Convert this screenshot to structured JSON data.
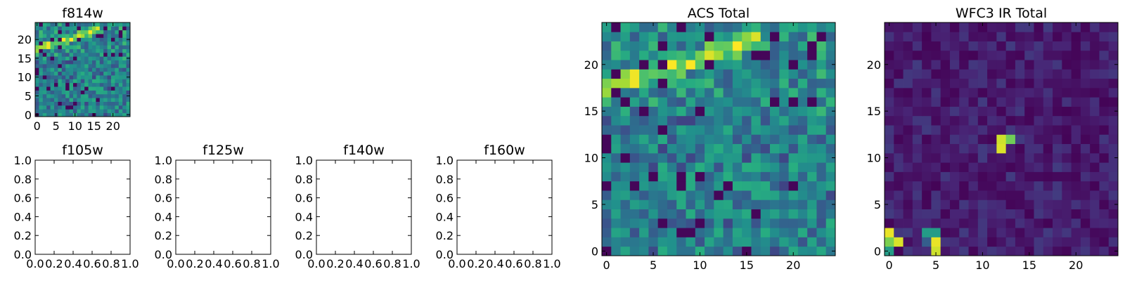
{
  "chart_data": [
    {
      "type": "heatmap",
      "title": "f814w",
      "xlim": [
        -0.5,
        24.5
      ],
      "ylim": [
        -0.5,
        24.5
      ],
      "xticks": [
        0,
        5,
        10,
        15,
        20
      ],
      "yticks": [
        0,
        5,
        10,
        15,
        20
      ],
      "colormap": "viridis",
      "grid": false,
      "generator": "acs",
      "values": []
    },
    {
      "type": "empty",
      "title": "f105w",
      "xlim": [
        0,
        1
      ],
      "ylim": [
        0,
        1
      ],
      "xticks": [
        "0.0",
        "0.2",
        "0.4",
        "0.6",
        "0.8",
        "1.0"
      ],
      "yticks": [
        "0.0",
        "0.2",
        "0.4",
        "0.6",
        "0.8",
        "1.0"
      ]
    },
    {
      "type": "empty",
      "title": "f125w",
      "xlim": [
        0,
        1
      ],
      "ylim": [
        0,
        1
      ],
      "xticks": [
        "0.0",
        "0.2",
        "0.4",
        "0.6",
        "0.8",
        "1.0"
      ],
      "yticks": [
        "0.0",
        "0.2",
        "0.4",
        "0.6",
        "0.8",
        "1.0"
      ]
    },
    {
      "type": "empty",
      "title": "f140w",
      "xlim": [
        0,
        1
      ],
      "ylim": [
        0,
        1
      ],
      "xticks": [
        "0.0",
        "0.2",
        "0.4",
        "0.6",
        "0.8",
        "1.0"
      ],
      "yticks": [
        "0.0",
        "0.2",
        "0.4",
        "0.6",
        "0.8",
        "1.0"
      ]
    },
    {
      "type": "empty",
      "title": "f160w",
      "xlim": [
        0,
        1
      ],
      "ylim": [
        0,
        1
      ],
      "xticks": [
        "0.0",
        "0.2",
        "0.4",
        "0.6",
        "0.8",
        "1.0"
      ],
      "yticks": [
        "0.0",
        "0.2",
        "0.4",
        "0.6",
        "0.8",
        "1.0"
      ]
    },
    {
      "type": "heatmap",
      "title": "ACS Total",
      "xlim": [
        -0.5,
        24.5
      ],
      "ylim": [
        -0.5,
        24.5
      ],
      "xticks": [
        0,
        5,
        10,
        15,
        20
      ],
      "yticks": [
        0,
        5,
        10,
        15,
        20
      ],
      "colormap": "viridis",
      "grid": false,
      "generator": "acs",
      "values": []
    },
    {
      "type": "heatmap",
      "title": "WFC3 IR Total",
      "xlim": [
        -0.5,
        24.5
      ],
      "ylim": [
        -0.5,
        24.5
      ],
      "xticks": [
        0,
        5,
        10,
        15,
        20
      ],
      "yticks": [
        0,
        5,
        10,
        15,
        20
      ],
      "colormap": "viridis",
      "grid": false,
      "generator": "ir",
      "values": []
    }
  ]
}
